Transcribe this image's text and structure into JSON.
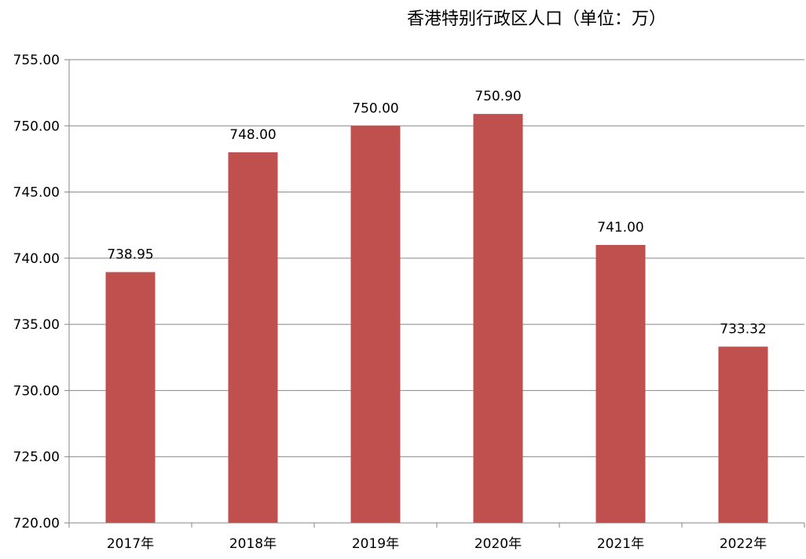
{
  "chart_data": {
    "type": "bar",
    "title": "香港特别行政区人口（单位：万）",
    "categories": [
      "2017年",
      "2018年",
      "2019年",
      "2020年",
      "2021年",
      "2022年"
    ],
    "series": [
      {
        "values": [
          738.95,
          748.0,
          750.0,
          750.9,
          741.0,
          733.32
        ],
        "labels": [
          "738.95",
          "748.00",
          "750.00",
          "750.90",
          "741.00",
          "733.32"
        ]
      }
    ],
    "ylim": [
      720,
      755
    ],
    "yticks": [
      720,
      725,
      730,
      735,
      740,
      745,
      750,
      755
    ],
    "ytick_labels": [
      "720.00",
      "725.00",
      "730.00",
      "735.00",
      "740.00",
      "745.00",
      "750.00",
      "755.00"
    ],
    "grid": true,
    "legend": "none",
    "colors": {
      "bar": "#c0504d",
      "grid": "#868686",
      "axis": "#868686"
    }
  }
}
